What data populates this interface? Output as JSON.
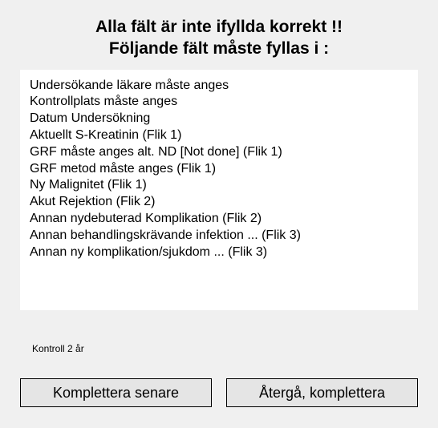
{
  "header": {
    "line1": "Alla fält är inte ifyllda korrekt !!",
    "line2": "Följande fält måste fyllas i :"
  },
  "messages": [
    "Undersökande läkare måste anges",
    "Kontrollplats måste anges",
    "Datum Undersökning",
    "Aktuellt S-Kreatinin (Flik 1)",
    "GRF måste anges alt. ND [Not done]  (Flik 1)",
    "GRF metod måste anges  (Flik 1)",
    "Ny Malignitet (Flik 1)",
    "Akut Rejektion (Flik 2)",
    "Annan nydebuterad Komplikation (Flik 2)",
    "Annan behandlingskrävande infektion ... (Flik 3)",
    "Annan ny komplikation/sjukdom ... (Flik 3)"
  ],
  "footer": {
    "label": "Kontroll 2 år"
  },
  "buttons": {
    "later": "Komplettera senare",
    "return": "Återgå, komplettera"
  },
  "style": {
    "background": "#f0f0f0",
    "box_background": "#ffffff",
    "button_background": "#e5e5e5",
    "text_color": "#000000",
    "header_fontsize": 21,
    "message_fontsize": 16,
    "footer_fontsize": 12,
    "button_fontsize": 18
  }
}
